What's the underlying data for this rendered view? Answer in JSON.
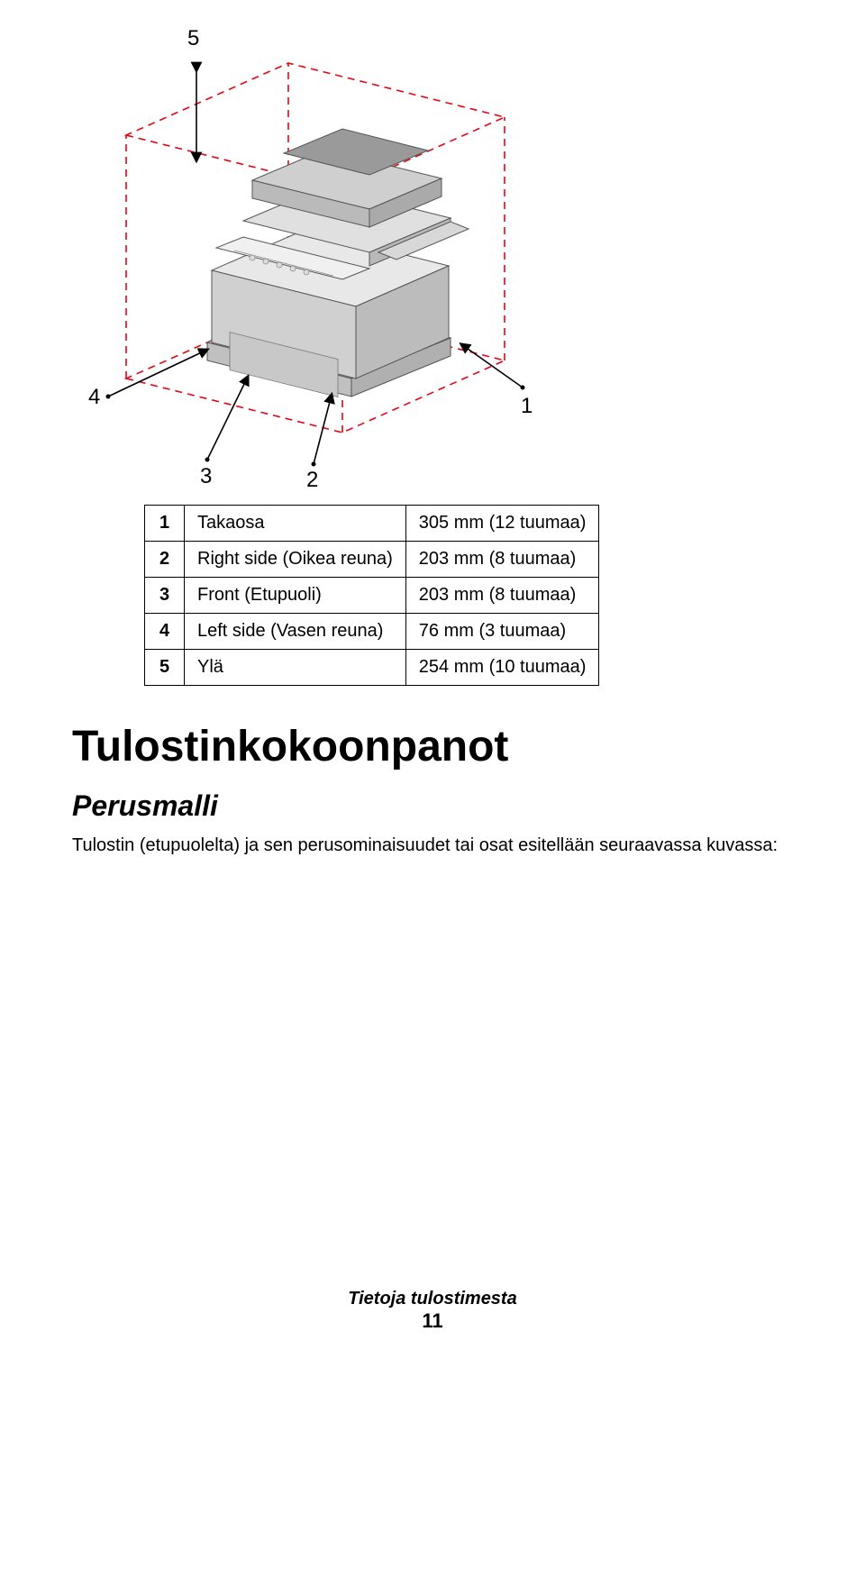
{
  "diagram": {
    "callouts": [
      "1",
      "2",
      "3",
      "4",
      "5"
    ],
    "dash_color": "#e30613",
    "dash_pattern": "8 6",
    "dash_width": 1.6,
    "arrow_color": "#000000",
    "printer_body": "#e6e6e6",
    "printer_shadow": "#bfbfbf",
    "printer_dark": "#8c8c8c",
    "printer_highlight": "#f5f5f5"
  },
  "table": {
    "rows": [
      {
        "n": "1",
        "label": "Takaosa",
        "value": "305 mm (12 tuumaa)"
      },
      {
        "n": "2",
        "label": "Right side (Oikea reuna)",
        "value": "203 mm (8 tuumaa)"
      },
      {
        "n": "3",
        "label": "Front (Etupuoli)",
        "value": "203 mm (8 tuumaa)"
      },
      {
        "n": "4",
        "label": "Left side (Vasen reuna)",
        "value": "76 mm (3 tuumaa)"
      },
      {
        "n": "5",
        "label": "Ylä",
        "value": "254 mm (10 tuumaa)"
      }
    ]
  },
  "headings": {
    "h1": "Tulostinkokoonpanot",
    "h2": "Perusmalli"
  },
  "body_text": "Tulostin (etupuolelta) ja sen perusominaisuudet tai osat esitellään seuraavassa kuvassa:",
  "footer": {
    "title": "Tietoja tulostimesta",
    "page": "11"
  }
}
